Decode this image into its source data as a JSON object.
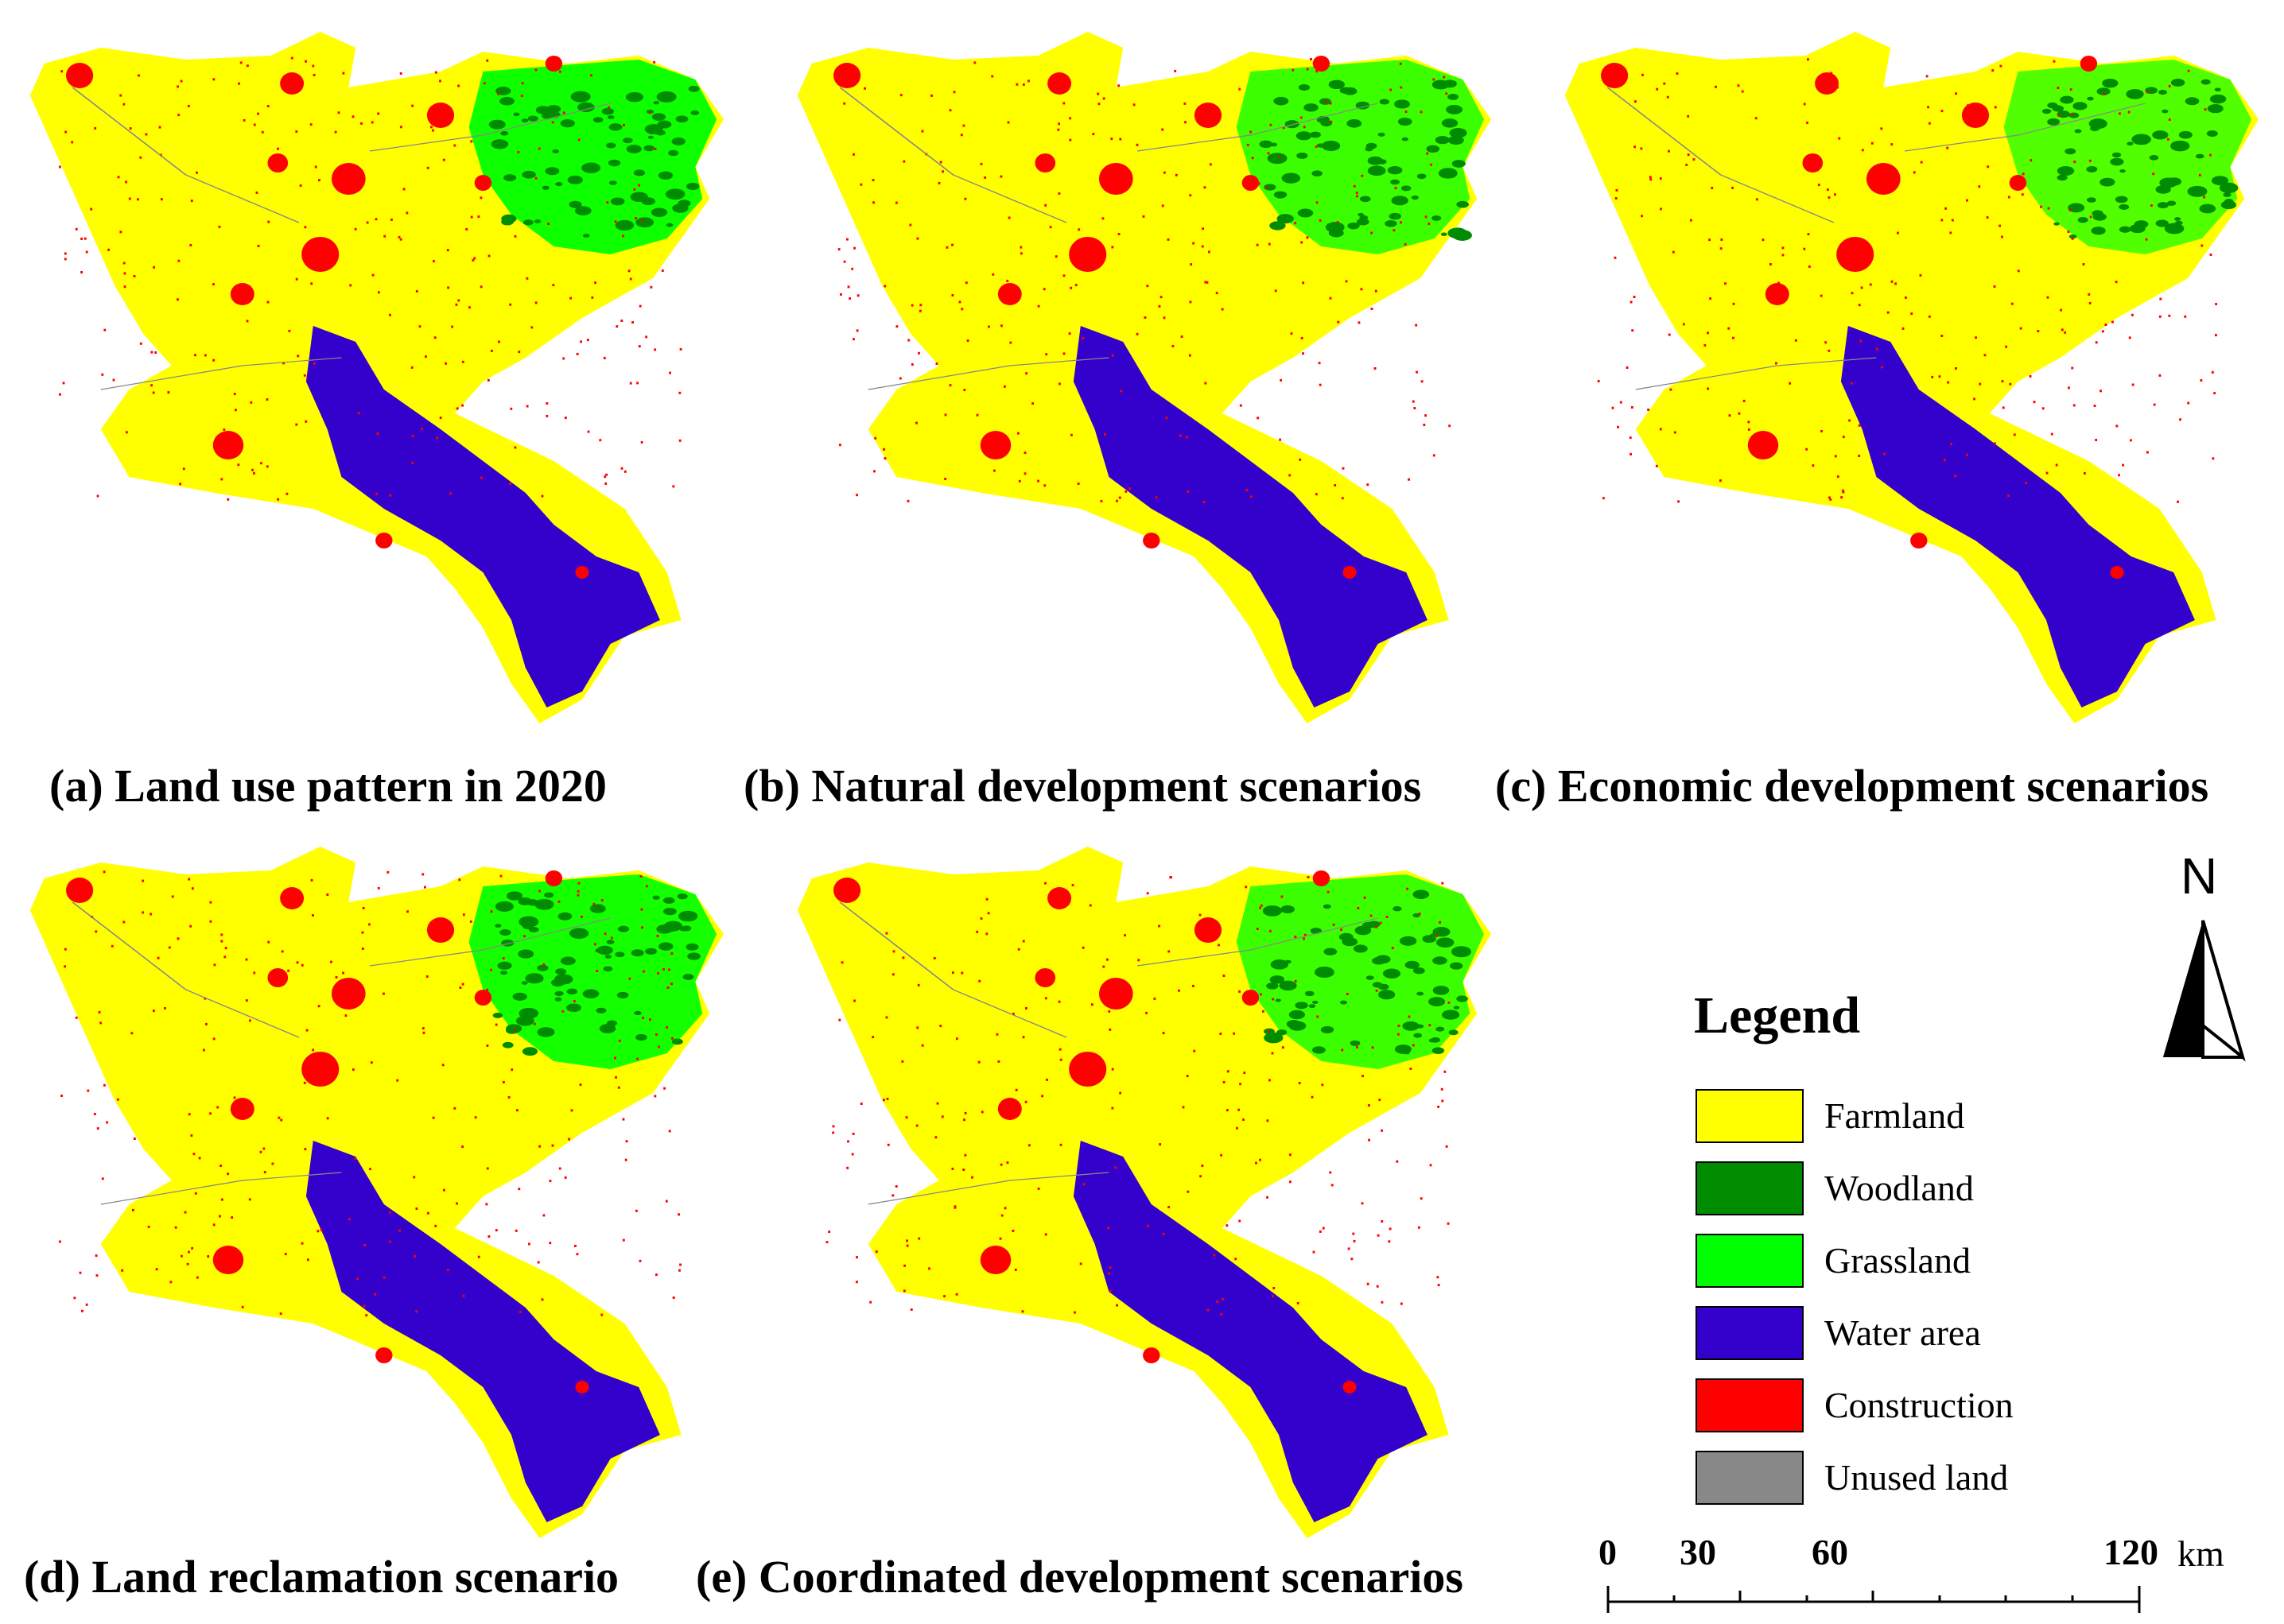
{
  "panels": [
    {
      "caption": "(a) Land use pattern in 2020",
      "green_level": 1.0
    },
    {
      "caption": "(b) Natural development scenarios",
      "green_level": 0.7
    },
    {
      "caption": "(c) Economic development scenarios",
      "green_level": 0.55
    },
    {
      "caption": "(d) Land reclamation scenario",
      "green_level": 0.95
    },
    {
      "caption": "(e) Coordinated development scenarios",
      "green_level": 0.7
    }
  ],
  "legend": {
    "title": "Legend",
    "items": [
      {
        "label": "Farmland",
        "color": "#ffff00"
      },
      {
        "label": "Woodland",
        "color": "#008c00"
      },
      {
        "label": "Grassland",
        "color": "#00ff00"
      },
      {
        "label": "Water area",
        "color": "#3300cc"
      },
      {
        "label": "Construction",
        "color": "#ff0000"
      },
      {
        "label": "Unused land",
        "color": "#888888"
      }
    ]
  },
  "north_arrow": {
    "label": "N"
  },
  "scale_bar": {
    "labels": [
      "0",
      "30",
      "60",
      "120"
    ],
    "unit": "km"
  }
}
